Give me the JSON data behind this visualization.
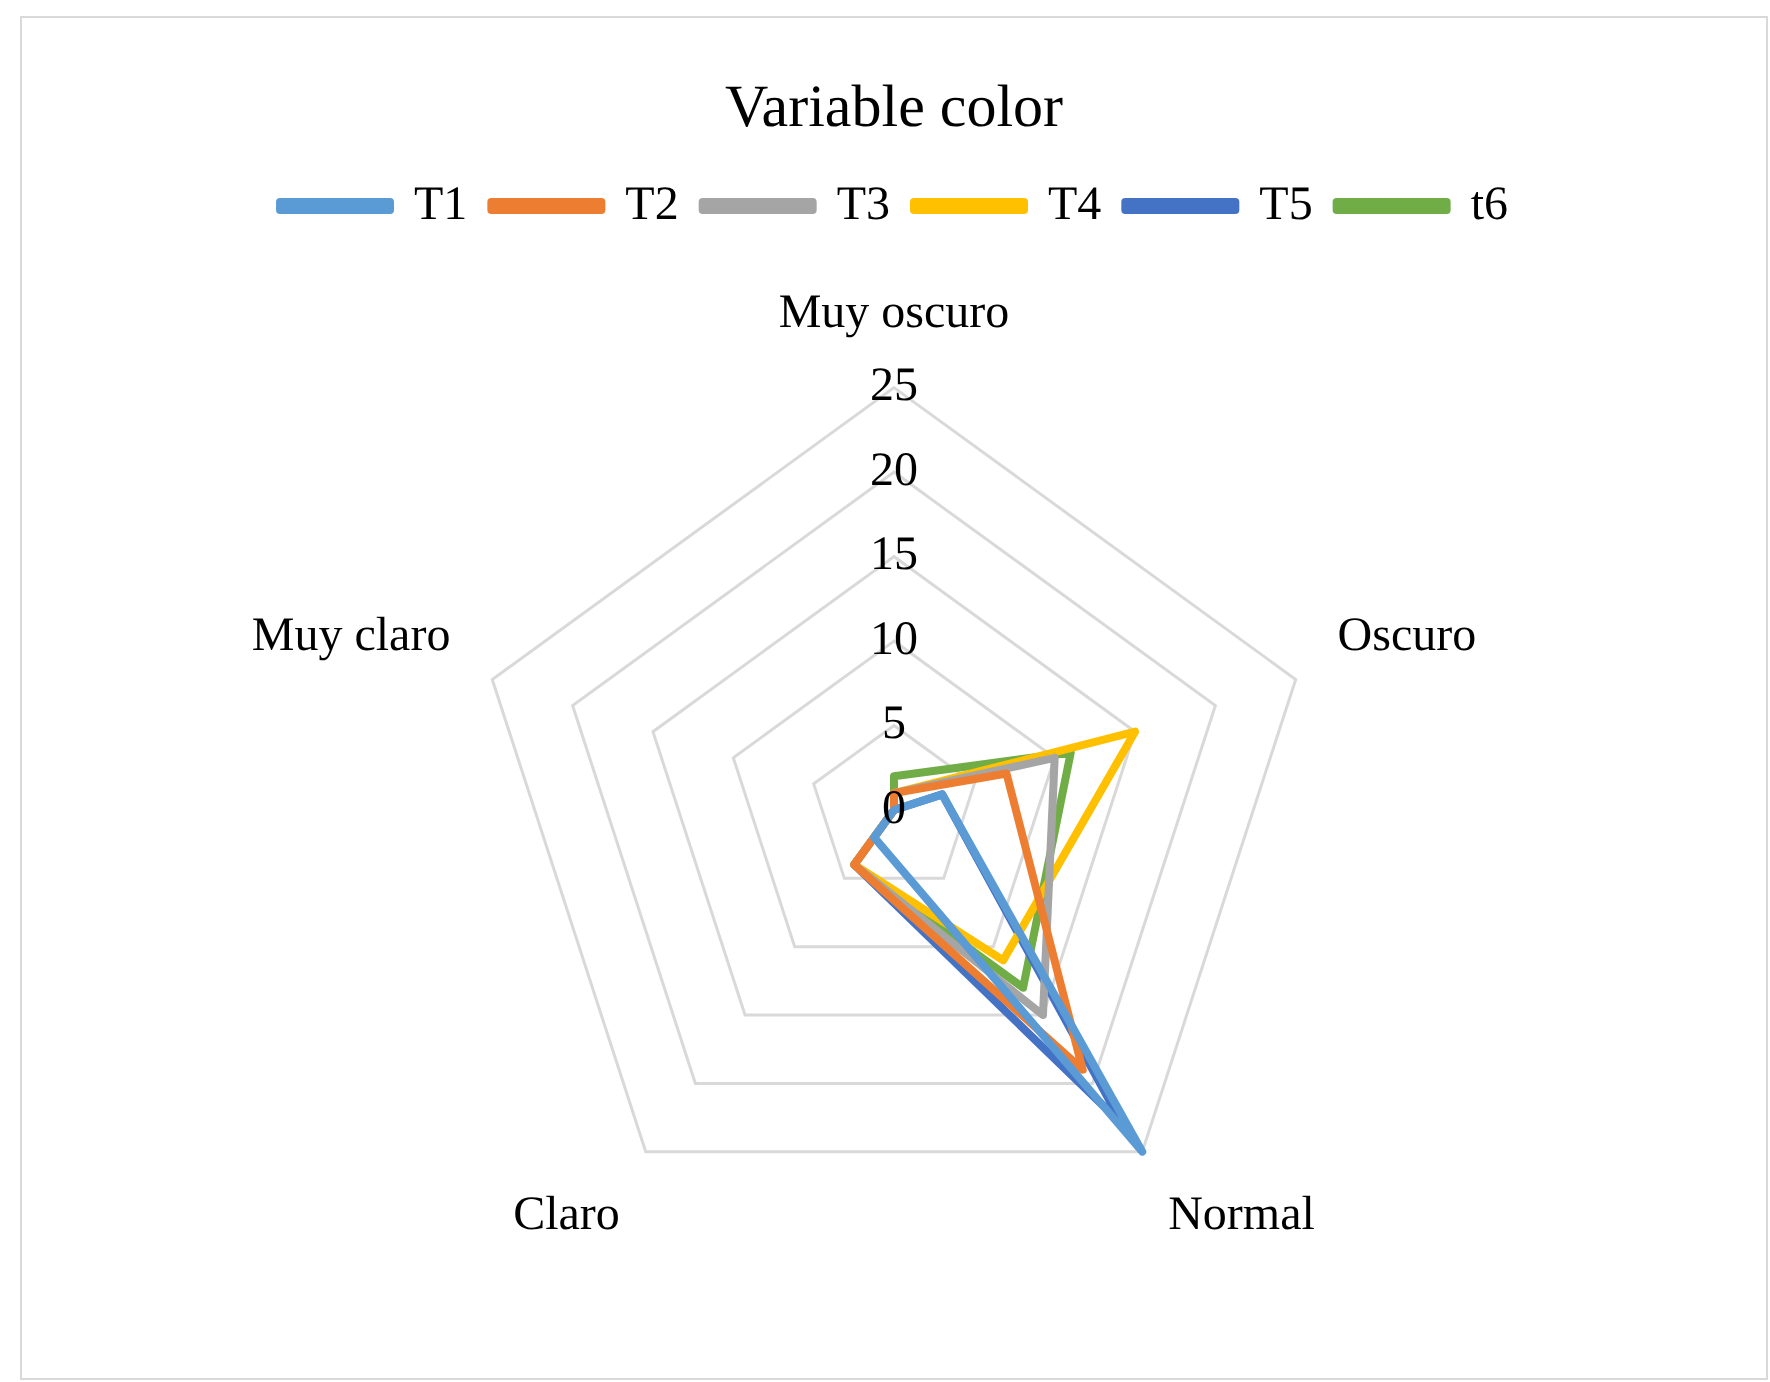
{
  "chart_data": {
    "type": "radar",
    "title": "Variable color",
    "categories": [
      "Muy oscuro",
      "Oscuro",
      "Normal",
      "Claro",
      "Muy claro"
    ],
    "series": [
      {
        "name": "T1",
        "color": "#5b9bd5",
        "values": [
          0,
          3,
          25,
          2,
          0
        ]
      },
      {
        "name": "T2",
        "color": "#ed7d31",
        "values": [
          1,
          7,
          19,
          4,
          0
        ]
      },
      {
        "name": "T3",
        "color": "#a5a5a5",
        "values": [
          1,
          10,
          15,
          4,
          0
        ]
      },
      {
        "name": "T4",
        "color": "#ffc000",
        "values": [
          1,
          15,
          11,
          4,
          0
        ]
      },
      {
        "name": "T5",
        "color": "#4472c4",
        "values": [
          0,
          3,
          23,
          4,
          0
        ]
      },
      {
        "name": "t6",
        "color": "#70ad47",
        "values": [
          2,
          11,
          13,
          4,
          0
        ]
      }
    ],
    "ylim": [
      0,
      25
    ],
    "yticks": [
      0,
      5,
      10,
      15,
      20,
      25
    ],
    "grid": true,
    "legend": "top",
    "marker": "none",
    "line_style": "solid"
  }
}
